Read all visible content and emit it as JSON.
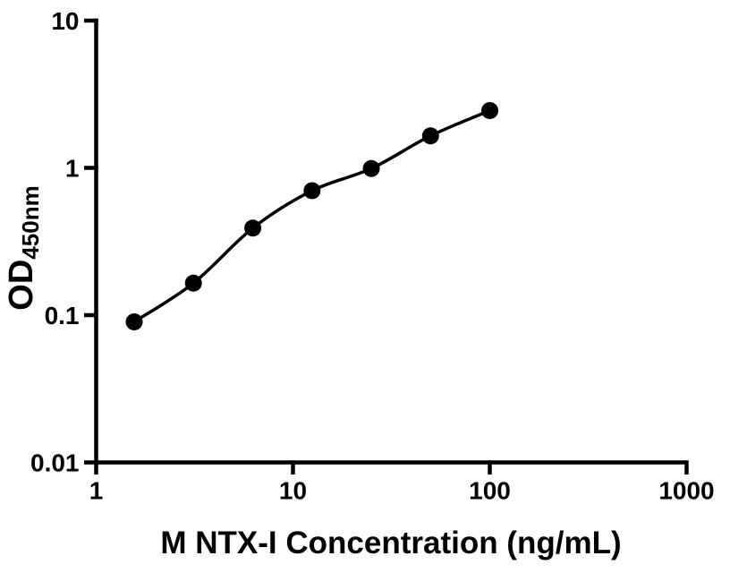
{
  "figure": {
    "background_color": "#ffffff",
    "ink_color": "#000000"
  },
  "chart_data": {
    "type": "scatter",
    "subtype": "standard-curve-with-fit",
    "title": "",
    "xlabel": "M NTX-I Concentration (ng/mL)",
    "ylabel_main": "OD",
    "ylabel_sub": "450nm",
    "x_scale": "log10",
    "y_scale": "log10",
    "xlim": [
      1,
      1000
    ],
    "ylim": [
      0.01,
      10
    ],
    "x_ticks": [
      1,
      10,
      100,
      1000
    ],
    "x_tick_labels": [
      "1",
      "10",
      "100",
      "1000"
    ],
    "y_ticks": [
      0.01,
      0.1,
      1,
      10
    ],
    "y_tick_labels": [
      "0.01",
      "0.1",
      "1",
      "10"
    ],
    "grid": false,
    "legend_position": "none",
    "marker": "filled-circle",
    "marker_color": "#000000",
    "curve_color": "#000000",
    "series": [
      {
        "name": "standard-curve",
        "x": [
          1.56,
          3.12,
          6.25,
          12.5,
          25,
          50,
          100
        ],
        "y": [
          0.09,
          0.165,
          0.39,
          0.7,
          0.99,
          1.65,
          2.45
        ]
      }
    ]
  }
}
